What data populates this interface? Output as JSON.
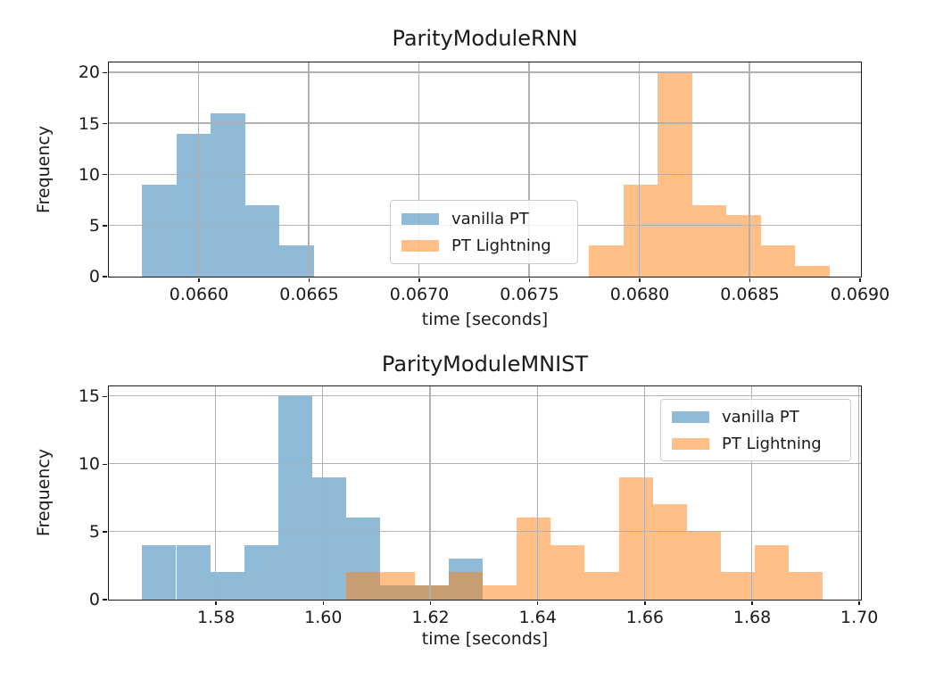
{
  "colors": {
    "background": "#ffffff",
    "grid": "#b0b0b0",
    "spine": "#1a1a1a",
    "text": "#1a1a1a"
  },
  "legend": {
    "alpha": 0.5,
    "items": [
      {
        "label": "vanilla PT",
        "color": "#1f77b4"
      },
      {
        "label": "PT Lightning",
        "color": "#ff7f0e"
      }
    ]
  },
  "chart_data": [
    {
      "type": "histogram",
      "title": "ParityModuleRNN",
      "xlabel": "time [seconds]",
      "ylabel": "Frequency",
      "xlim": [
        0.065591,
        0.069004
      ],
      "ylim": [
        0,
        21
      ],
      "grid": true,
      "legend_position": "center",
      "xticks": [
        0.066,
        0.0665,
        0.067,
        0.0675,
        0.068,
        0.0685,
        0.069
      ],
      "xtick_labels": [
        "0.0660",
        "0.0665",
        "0.0670",
        "0.0675",
        "0.0680",
        "0.0685",
        "0.0690"
      ],
      "yticks": [
        0,
        5,
        10,
        15,
        20
      ],
      "ytick_labels": [
        "0",
        "5",
        "10",
        "15",
        "20"
      ],
      "bins": {
        "start": 0.065744,
        "width": 0.000156,
        "count": 20
      },
      "series": [
        {
          "name": "vanilla PT",
          "counts": [
            9,
            14,
            16,
            7,
            3,
            0,
            0,
            0,
            0,
            0,
            0,
            0,
            0,
            0,
            0,
            0,
            0,
            0,
            0,
            0
          ]
        },
        {
          "name": "PT Lightning",
          "counts": [
            0,
            0,
            0,
            0,
            0,
            0,
            0,
            0,
            0,
            0,
            0,
            0,
            0,
            3,
            9,
            20,
            7,
            6,
            3,
            1
          ]
        }
      ]
    },
    {
      "type": "histogram",
      "title": "ParityModuleMNIST",
      "xlabel": "time [seconds]",
      "ylabel": "Frequency",
      "xlim": [
        1.56,
        1.7003
      ],
      "ylim": [
        0,
        15.75
      ],
      "grid": true,
      "legend_position": "upper right",
      "xticks": [
        1.58,
        1.6,
        1.62,
        1.64,
        1.66,
        1.68,
        1.7
      ],
      "xtick_labels": [
        "1.58",
        "1.60",
        "1.62",
        "1.64",
        "1.66",
        "1.68",
        "1.70"
      ],
      "yticks": [
        0,
        5,
        10,
        15
      ],
      "ytick_labels": [
        "0",
        "5",
        "10",
        "15"
      ],
      "bins": {
        "start": 1.5663,
        "width": 0.00635,
        "count": 20
      },
      "series": [
        {
          "name": "vanilla PT",
          "counts": [
            4,
            4,
            2,
            4,
            15,
            9,
            6,
            1,
            1,
            3,
            0,
            0,
            0,
            0,
            0,
            0,
            0,
            0,
            0,
            0
          ]
        },
        {
          "name": "PT Lightning",
          "counts": [
            0,
            0,
            0,
            0,
            0,
            0,
            2,
            2,
            1,
            2,
            1,
            6,
            4,
            2,
            9,
            7,
            5,
            2,
            4,
            2
          ]
        }
      ]
    }
  ]
}
